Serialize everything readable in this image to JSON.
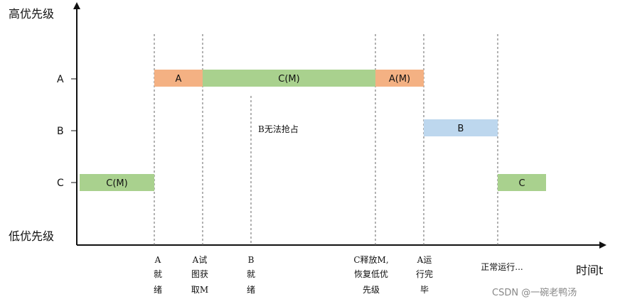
{
  "axes": {
    "y_high": "高优先级",
    "y_low": "低优先级",
    "x_label": "时间t"
  },
  "rows": [
    "A",
    "B",
    "C"
  ],
  "bars": [
    {
      "row": "C",
      "label": "C(M)",
      "start": 0,
      "end": 1,
      "color": "#a9d18e"
    },
    {
      "row": "A",
      "label": "A",
      "start": 1,
      "end": 2,
      "color": "#f4b183"
    },
    {
      "row": "A",
      "label": "C(M)",
      "start": 2,
      "end": 5,
      "color": "#a9d18e"
    },
    {
      "row": "A",
      "label": "A(M)",
      "start": 5,
      "end": 6,
      "color": "#f4b183"
    },
    {
      "row": "B",
      "label": "B",
      "start": 6,
      "end": 7,
      "color": "#bdd7ee"
    },
    {
      "row": "C",
      "label": "C",
      "start": 7,
      "end": 8,
      "color": "#a9d18e"
    }
  ],
  "events": [
    {
      "lines": [
        "A",
        "就",
        "绪"
      ]
    },
    {
      "lines": [
        "A试",
        "图获",
        "取M"
      ]
    },
    {
      "lines": [
        "B",
        "就",
        "绪"
      ]
    },
    {
      "lines": [
        "C释放M,",
        "恢复低优",
        "先级"
      ]
    },
    {
      "lines": [
        "A运",
        "行完",
        "毕"
      ]
    },
    {
      "lines": [
        "正常运行..."
      ]
    }
  ],
  "note": "B无法抢占",
  "watermark": "CSDN @一碗老鸭汤"
}
